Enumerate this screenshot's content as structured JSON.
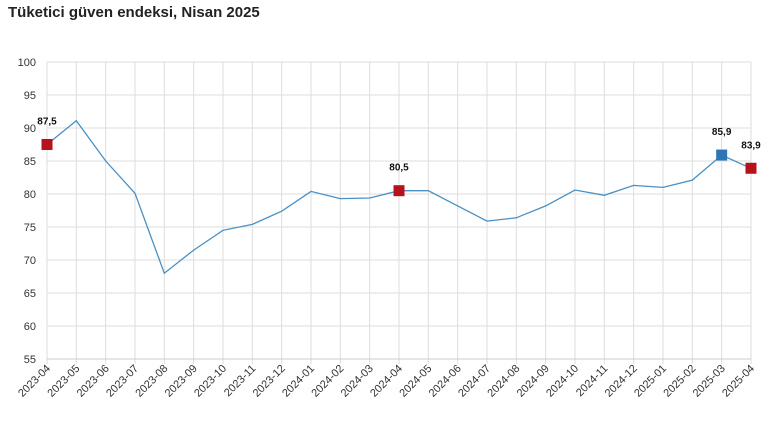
{
  "chart_data": {
    "type": "line",
    "title": "Tüketici güven endeksi, Nisan 2025",
    "xlabel": "",
    "ylabel": "",
    "ylim": [
      55,
      100
    ],
    "yticks": [
      55,
      60,
      65,
      70,
      75,
      80,
      85,
      90,
      95,
      100
    ],
    "grid": true,
    "legend": "none",
    "categories": [
      "2023-04",
      "2023-05",
      "2023-06",
      "2023-07",
      "2023-08",
      "2023-09",
      "2023-10",
      "2023-11",
      "2023-12",
      "2024-01",
      "2024-02",
      "2024-03",
      "2024-04",
      "2024-05",
      "2024-06",
      "2024-07",
      "2024-08",
      "2024-09",
      "2024-10",
      "2024-11",
      "2024-12",
      "2025-01",
      "2025-02",
      "2025-03",
      "2025-04"
    ],
    "series": [
      {
        "values": [
          87.5,
          91.1,
          85.0,
          80.1,
          68.0,
          71.5,
          74.5,
          75.4,
          77.4,
          80.4,
          79.3,
          79.4,
          80.5,
          80.5,
          78.2,
          75.9,
          76.4,
          78.2,
          80.6,
          79.8,
          81.3,
          81.0,
          82.1,
          85.9,
          83.9
        ],
        "color": "#4a90c4"
      }
    ],
    "highlights": [
      {
        "index": 0,
        "label": "87,5",
        "color": "#b5121b"
      },
      {
        "index": 12,
        "label": "80,5",
        "color": "#b5121b"
      },
      {
        "index": 23,
        "label": "85,9",
        "color": "#2e75b6"
      },
      {
        "index": 24,
        "label": "83,9",
        "color": "#b5121b"
      }
    ]
  }
}
